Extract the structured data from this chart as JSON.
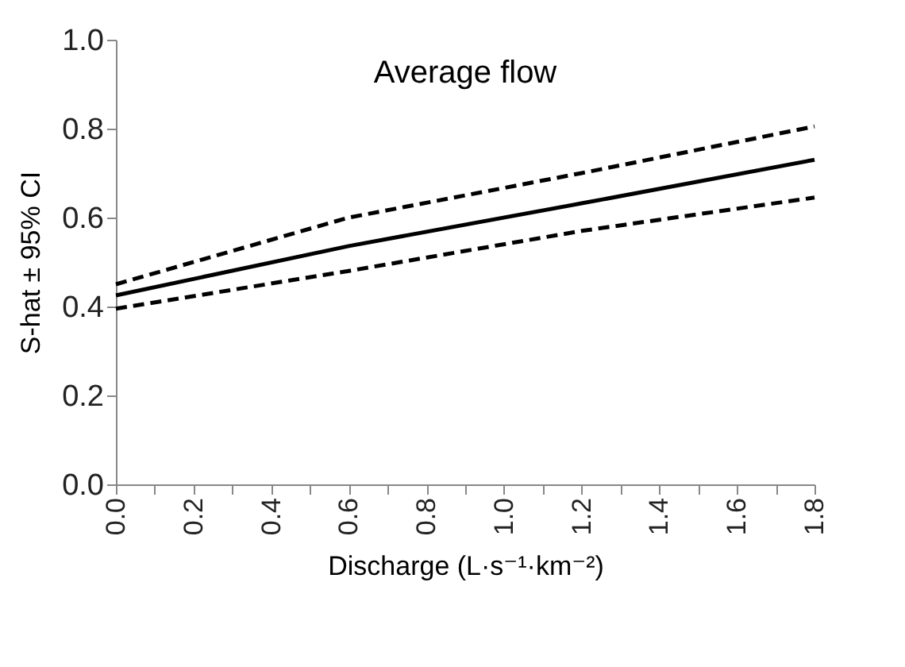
{
  "chart_data": {
    "type": "line",
    "title": "Average flow",
    "xlabel": "Discharge (L·s⁻¹·km⁻²)",
    "ylabel": "S-hat ± 95% CI",
    "x": [
      0,
      0.6,
      1.2,
      1.8
    ],
    "series": [
      {
        "color": "#000000",
        "line_style": "solid",
        "values": [
          0.425,
          0.536,
          0.632,
          0.73
        ]
      },
      {
        "color": "#000000",
        "line_style": "dashed",
        "values": [
          0.45,
          0.6,
          0.7,
          0.805
        ]
      },
      {
        "color": "#000000",
        "line_style": "dashed",
        "values": [
          0.395,
          0.48,
          0.57,
          0.645
        ]
      }
    ],
    "xlim": [
      0,
      1.8
    ],
    "ylim": [
      0,
      1
    ],
    "xticks": [
      {
        "value": 0,
        "label": "0.0"
      },
      {
        "value": 0.1,
        "label": null
      },
      {
        "value": 0.2,
        "label": "0.2"
      },
      {
        "value": 0.3,
        "label": null
      },
      {
        "value": 0.4,
        "label": "0.4"
      },
      {
        "value": 0.5,
        "label": null
      },
      {
        "value": 0.6,
        "label": "0.6"
      },
      {
        "value": 0.7,
        "label": null
      },
      {
        "value": 0.8,
        "label": "0.8"
      },
      {
        "value": 0.9,
        "label": null
      },
      {
        "value": 1.0,
        "label": "1.0"
      },
      {
        "value": 1.1,
        "label": null
      },
      {
        "value": 1.2,
        "label": "1.2"
      },
      {
        "value": 1.3,
        "label": null
      },
      {
        "value": 1.4,
        "label": "1.4"
      },
      {
        "value": 1.5,
        "label": null
      },
      {
        "value": 1.6,
        "label": "1.6"
      },
      {
        "value": 1.7,
        "label": null
      },
      {
        "value": 1.8,
        "label": "1.8"
      }
    ],
    "yticks": [
      {
        "value": 0,
        "label": "0.0"
      },
      {
        "value": 0.2,
        "label": "0.2"
      },
      {
        "value": 0.4,
        "label": "0.4"
      },
      {
        "value": 0.6,
        "label": "0.6"
      },
      {
        "value": 0.8,
        "label": "0.8"
      },
      {
        "value": 1.0,
        "label": "1.0"
      }
    ],
    "grid": false,
    "legend": false,
    "marker": "none"
  }
}
